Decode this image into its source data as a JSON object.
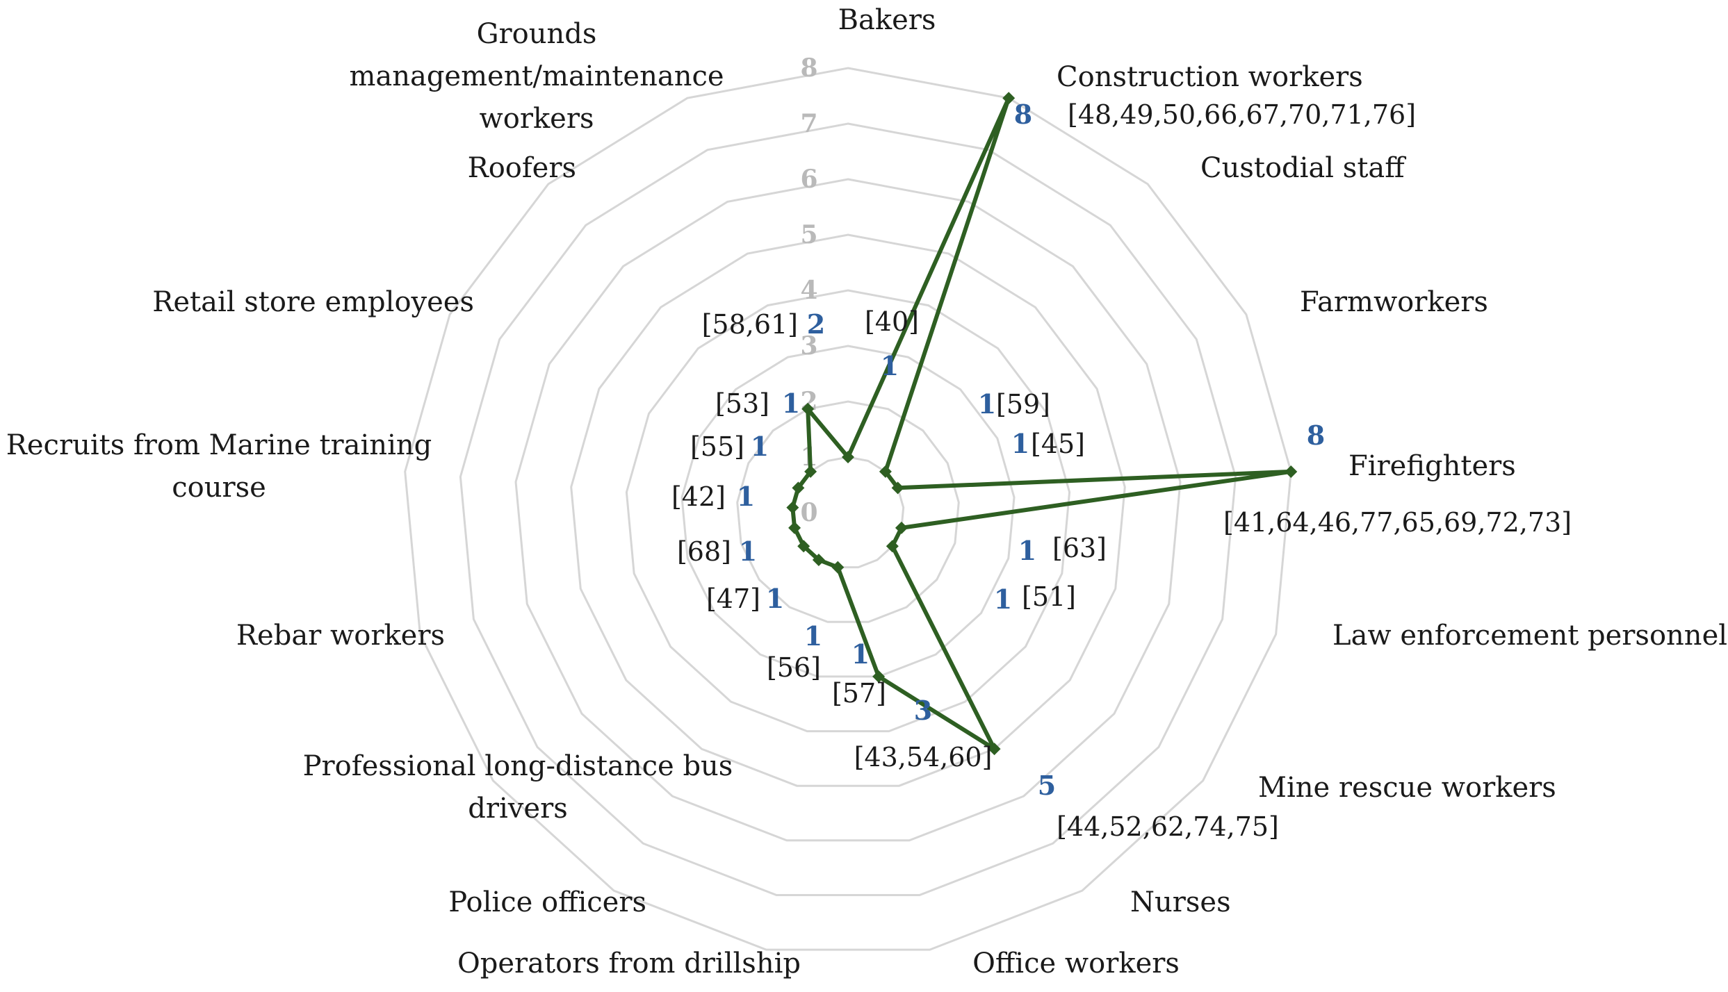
{
  "chart_data": {
    "type": "radar",
    "title": "",
    "rlim": [
      0,
      8
    ],
    "ticks": [
      "0",
      "1",
      "2",
      "3",
      "4",
      "5",
      "6",
      "7",
      "8"
    ],
    "grid": true,
    "categories": [
      "Bakers",
      "Construction workers",
      "Custodial staff",
      "Farmworkers",
      "Firefighters",
      "Law enforcement personnel",
      "Mine rescue workers",
      "Nurses",
      "Office workers",
      "Operators from drillship",
      "Police officers",
      "Professional long-distance bus drivers",
      "Rebar workers",
      "Recruits from Marine training course",
      "Retail store employees",
      "Roofers",
      "Grounds management/maintenance workers"
    ],
    "series": [
      {
        "color": "#2e5f22",
        "values": [
          1,
          8,
          1,
          1,
          8,
          1,
          1,
          5,
          3,
          1,
          1,
          1,
          1,
          1,
          1,
          1,
          2
        ],
        "value_labels": [
          "1",
          "8",
          "1",
          "1",
          "8",
          "1",
          "1",
          "5",
          "3",
          "1",
          "1",
          "1",
          "1",
          "1",
          "1",
          "1",
          "2"
        ],
        "references": [
          "[40]",
          "[48,49,50,66,67,70,71,76]",
          "[59]",
          "[45]",
          "[41,64,46,77,65,69,72,73]",
          "[63]",
          "[51]",
          "[44,52,62,74,75]",
          "[43,54,60]",
          "[57]",
          "[56]",
          "[47]",
          "[68]",
          "[42]",
          "[55]",
          "[53]",
          "[58,61]"
        ]
      }
    ]
  }
}
